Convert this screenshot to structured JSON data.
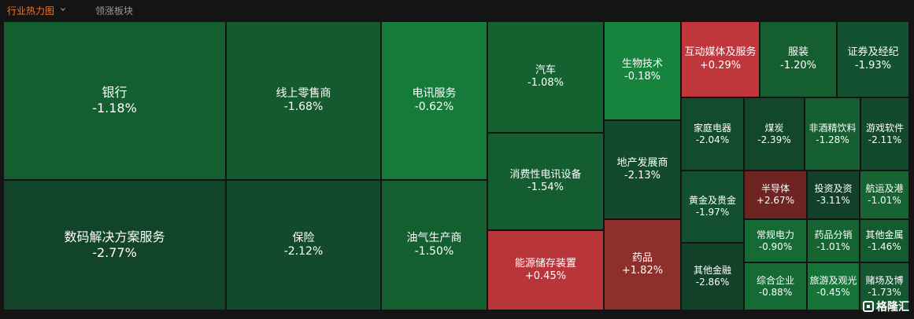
{
  "tabs": {
    "active": "行业热力图",
    "inactive": "领涨板块"
  },
  "watermark": "格隆汇",
  "colors": {
    "background": "#141414",
    "active_tab": "#e8782a",
    "inactive_tab": "#9a9a9a"
  },
  "chart_data": {
    "type": "treemap",
    "unit": "%",
    "items": [
      {
        "name": "银行",
        "value": "-1.18%",
        "color": "#145f30"
      },
      {
        "name": "数码解决方案服务",
        "value": "-2.77%",
        "color": "#12442a"
      },
      {
        "name": "线上零售商",
        "value": "-1.68%",
        "color": "#145a2e"
      },
      {
        "name": "保险",
        "value": "-2.12%",
        "color": "#134a2c"
      },
      {
        "name": "电讯服务",
        "value": "-0.62%",
        "color": "#167a3a"
      },
      {
        "name": "油气生产商",
        "value": "-1.50%",
        "color": "#145f30"
      },
      {
        "name": "汽车",
        "value": "-1.08%",
        "color": "#156231"
      },
      {
        "name": "消费性电讯设备",
        "value": "-1.54%",
        "color": "#145d30"
      },
      {
        "name": "能源储存装置",
        "value": "+0.45%",
        "color": "#b8353a"
      },
      {
        "name": "生物技术",
        "value": "-0.18%",
        "color": "#17843e"
      },
      {
        "name": "地产发展商",
        "value": "-2.13%",
        "color": "#134a2c"
      },
      {
        "name": "药品",
        "value": "+1.82%",
        "color": "#8e2f2c"
      },
      {
        "name": "互动媒体及服务",
        "value": "+0.29%",
        "color": "#c0363b"
      },
      {
        "name": "服装",
        "value": "-1.20%",
        "color": "#155e30"
      },
      {
        "name": "证券及经纪",
        "value": "-1.93%",
        "color": "#135230"
      },
      {
        "name": "家庭电器",
        "value": "-2.04%",
        "color": "#134c2c"
      },
      {
        "name": "煤炭",
        "value": "-2.39%",
        "color": "#12472b"
      },
      {
        "name": "非酒精饮料",
        "value": "-1.28%",
        "color": "#155e30"
      },
      {
        "name": "游戏软件",
        "value": "-2.11%",
        "color": "#134a2c"
      },
      {
        "name": "黄金及贵金",
        "value": "-1.97%",
        "color": "#135030"
      },
      {
        "name": "半导体",
        "value": "+2.67%",
        "color": "#6e2420"
      },
      {
        "name": "投资及资",
        "value": "-3.11%",
        "color": "#12402a"
      },
      {
        "name": "航运及港",
        "value": "-1.01%",
        "color": "#156432"
      },
      {
        "name": "常规电力",
        "value": "-0.90%",
        "color": "#166a35"
      },
      {
        "name": "药品分销",
        "value": "-1.01%",
        "color": "#156432"
      },
      {
        "name": "其他金属",
        "value": "-1.46%",
        "color": "#145c30"
      },
      {
        "name": "其他金融",
        "value": "-2.86%",
        "color": "#12432a"
      },
      {
        "name": "综合企业",
        "value": "-0.88%",
        "color": "#166a35"
      },
      {
        "name": "旅游及观光",
        "value": "-0.45%",
        "color": "#167438"
      },
      {
        "name": "赌场及博",
        "value": "-1.73%",
        "color": "#145730"
      }
    ]
  }
}
